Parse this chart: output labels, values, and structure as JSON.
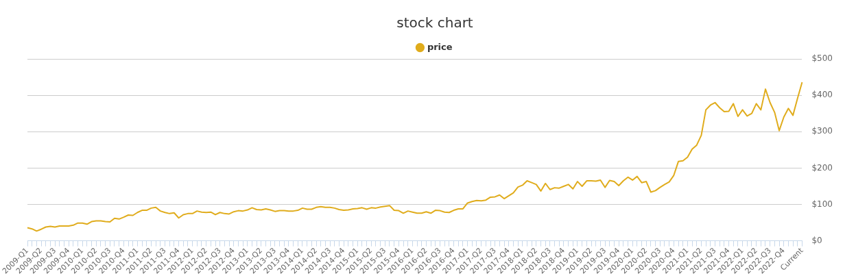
{
  "chart_data": {
    "type": "line",
    "title": "stock chart",
    "categories": [
      "2009-Q1",
      null,
      null,
      "2009-Q2",
      null,
      null,
      "2009-Q3",
      null,
      null,
      "2009-Q4",
      null,
      null,
      "2010-Q1",
      null,
      null,
      "2010-Q2",
      null,
      null,
      "2010-Q3",
      null,
      null,
      "2010-Q4",
      null,
      null,
      "2011-Q1",
      null,
      null,
      "2011-Q2",
      null,
      null,
      "2011-Q3",
      null,
      null,
      "2011-Q4",
      null,
      null,
      "2012-Q1",
      null,
      null,
      "2012-Q2",
      null,
      null,
      "2012-Q3",
      null,
      null,
      "2012-Q4",
      null,
      null,
      "2013-Q1",
      null,
      null,
      "2013-Q2",
      null,
      null,
      "2013-Q3",
      null,
      null,
      "2013-Q4",
      null,
      null,
      "2014-Q1",
      null,
      null,
      "2014-Q2",
      null,
      null,
      "2014-Q3",
      null,
      null,
      "2014-Q4",
      null,
      null,
      "2015-Q1",
      null,
      null,
      "2015-Q2",
      null,
      null,
      "2015-Q3",
      null,
      null,
      "2015-Q4",
      null,
      null,
      "2016-Q1",
      null,
      null,
      "2016-Q2",
      null,
      null,
      "2016-Q3",
      null,
      null,
      "2016-Q4",
      null,
      null,
      "2017-Q1",
      null,
      null,
      "2017-Q2",
      null,
      null,
      "2017-Q3",
      null,
      null,
      "2017-Q4",
      null,
      null,
      "2018-Q1",
      null,
      null,
      "2018-Q2",
      null,
      null,
      "2018-Q3",
      null,
      null,
      "2018-Q4",
      null,
      null,
      "2019-Q1",
      null,
      null,
      "2019-Q2",
      null,
      null,
      "2019-Q3",
      null,
      null,
      "2019-Q4",
      null,
      null,
      "2020-Q1",
      null,
      null,
      "2020-Q2",
      null,
      null,
      "2020-Q3",
      null,
      null,
      "2020-Q4",
      null,
      null,
      "2021-Q1",
      null,
      null,
      "2021-Q2",
      null,
      null,
      "2021-Q3",
      null,
      null,
      "2021-Q4",
      null,
      null,
      "2022-Q1",
      null,
      null,
      "2022-Q2",
      null,
      null,
      "2022-Q3",
      null,
      null,
      "2022-Q4",
      null,
      null,
      null,
      "Current"
    ],
    "series": [
      {
        "name": "price",
        "color": "#e0ac1c",
        "values": [
          36,
          33,
          27,
          32,
          38,
          40,
          38,
          41,
          41,
          41,
          43,
          49,
          49,
          46,
          53,
          55,
          55,
          53,
          52,
          62,
          60,
          65,
          71,
          70,
          78,
          84,
          84,
          90,
          92,
          82,
          78,
          75,
          77,
          63,
          72,
          75,
          75,
          82,
          79,
          78,
          79,
          72,
          78,
          75,
          74,
          80,
          83,
          82,
          85,
          91,
          86,
          85,
          88,
          85,
          81,
          83,
          83,
          82,
          82,
          84,
          90,
          87,
          87,
          92,
          94,
          92,
          92,
          90,
          86,
          84,
          85,
          88,
          89,
          91,
          87,
          91,
          90,
          93,
          95,
          97,
          84,
          83,
          76,
          82,
          79,
          76,
          76,
          80,
          76,
          84,
          83,
          79,
          78,
          84,
          88,
          88,
          104,
          108,
          111,
          110,
          112,
          120,
          121,
          126,
          116,
          124,
          132,
          148,
          153,
          165,
          160,
          155,
          137,
          158,
          141,
          146,
          145,
          150,
          155,
          143,
          163,
          150,
          165,
          165,
          164,
          167,
          147,
          166,
          163,
          152,
          165,
          175,
          167,
          177,
          160,
          163,
          134,
          138,
          147,
          155,
          162,
          180,
          218,
          220,
          230,
          252,
          263,
          290,
          360,
          373,
          380,
          366,
          355,
          356,
          377,
          342,
          360,
          343,
          350,
          377,
          360,
          417,
          380,
          353,
          303,
          340,
          364,
          345,
          392,
          436
        ]
      }
    ],
    "ylim": [
      0,
      500
    ],
    "yticks": [
      {
        "value": 0,
        "label": "$0"
      },
      {
        "value": 100,
        "label": "$100"
      },
      {
        "value": 200,
        "label": "$200"
      },
      {
        "value": 300,
        "label": "$300"
      },
      {
        "value": 400,
        "label": "$400"
      },
      {
        "value": 500,
        "label": "$500"
      }
    ],
    "grid": "y",
    "legend": "top",
    "marker": "none",
    "line_style": "solid"
  }
}
